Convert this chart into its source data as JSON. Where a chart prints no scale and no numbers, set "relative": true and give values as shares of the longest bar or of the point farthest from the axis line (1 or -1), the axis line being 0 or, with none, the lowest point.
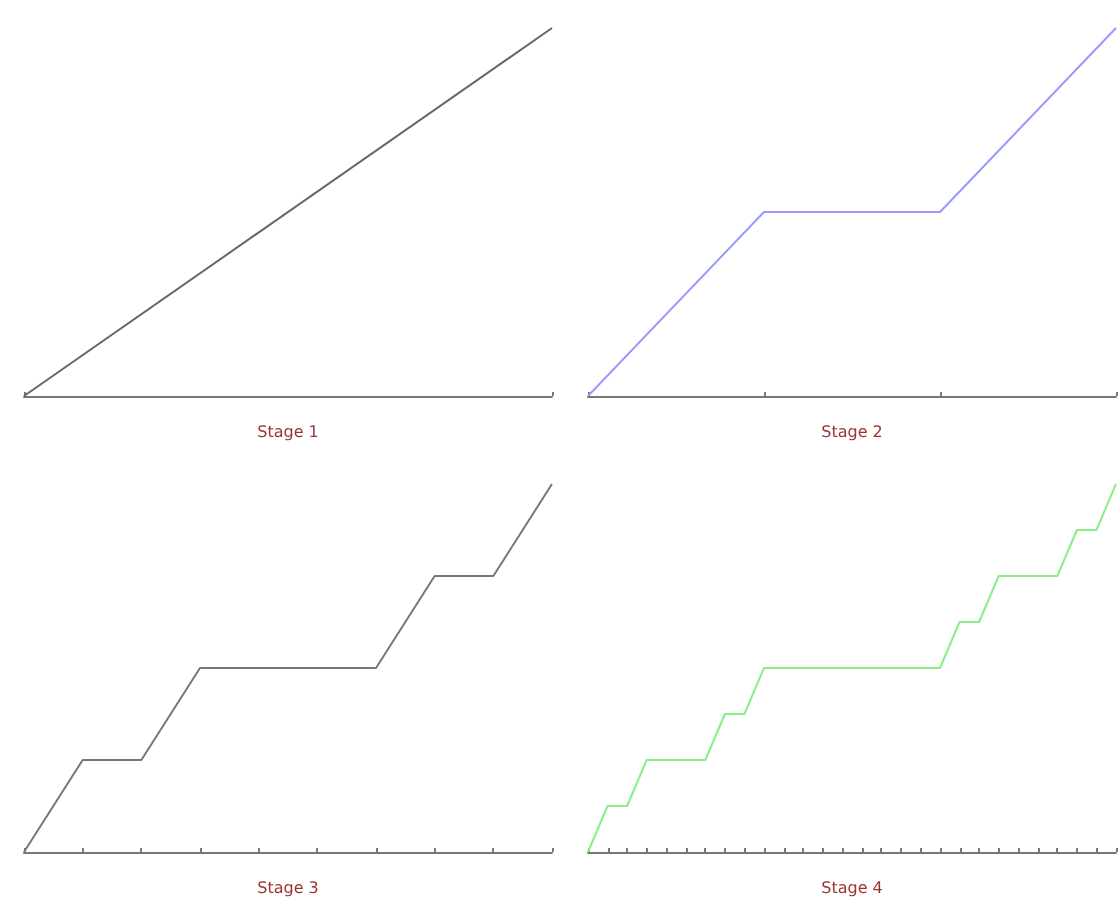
{
  "chart_data": [
    {
      "type": "line",
      "xlabel": "Stage 1",
      "relative": true,
      "categories": [
        null,
        null
      ],
      "series": [
        {
          "color": "#666666",
          "values": [
            0,
            1
          ]
        }
      ]
    },
    {
      "type": "line",
      "xlabel": "Stage 2",
      "relative": true,
      "categories": [
        null,
        null,
        null,
        null
      ],
      "series": [
        {
          "color": "#9999ff",
          "values": [
            0,
            0.5,
            0.5,
            1
          ]
        }
      ]
    },
    {
      "type": "line",
      "xlabel": "Stage 3",
      "relative": true,
      "categories": [
        null,
        null,
        null,
        null,
        null,
        null,
        null,
        null,
        null,
        null
      ],
      "series": [
        {
          "color": "#777777",
          "values": [
            0,
            0.25,
            0.25,
            0.5,
            0.5,
            0.5,
            0.5,
            0.75,
            0.75,
            1
          ]
        }
      ]
    },
    {
      "type": "line",
      "xlabel": "Stage 4",
      "relative": true,
      "categories": [
        null,
        null,
        null,
        null,
        null,
        null,
        null,
        null,
        null,
        null,
        null,
        null,
        null,
        null,
        null,
        null,
        null,
        null,
        null,
        null,
        null,
        null,
        null,
        null,
        null,
        null,
        null,
        null
      ],
      "series": [
        {
          "color": "#88ee88",
          "values": [
            0,
            0.125,
            0.125,
            0.25,
            0.25,
            0.25,
            0.25,
            0.375,
            0.375,
            0.5,
            0.5,
            0.5,
            0.5,
            0.5,
            0.5,
            0.5,
            0.5,
            0.5,
            0.5,
            0.625,
            0.625,
            0.75,
            0.75,
            0.75,
            0.75,
            0.875,
            0.875,
            1
          ]
        }
      ]
    }
  ]
}
